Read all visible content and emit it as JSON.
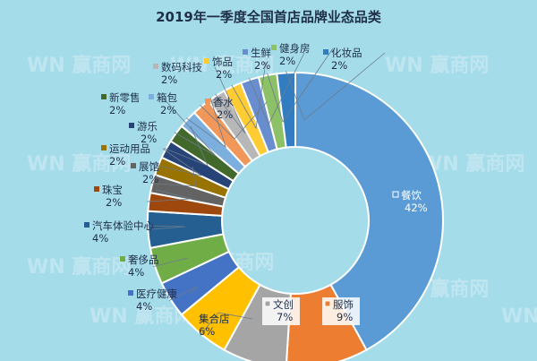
{
  "chart_data": {
    "type": "pie",
    "variant": "donut",
    "title": "2019年一季度全国首店品牌业态品类",
    "slices": [
      {
        "label": "餐饮",
        "value": 42,
        "display": "42%",
        "color": "#5b9bd5"
      },
      {
        "label": "服饰",
        "value": 9,
        "display": "9%",
        "color": "#ed7d31"
      },
      {
        "label": "文创",
        "value": 7,
        "display": "7%",
        "color": "#a5a5a5"
      },
      {
        "label": "集合店",
        "value": 6,
        "display": "6%",
        "color": "#ffc000"
      },
      {
        "label": "医疗健康",
        "value": 4,
        "display": "4%",
        "color": "#4472c4"
      },
      {
        "label": "奢侈品",
        "value": 4,
        "display": "4%",
        "color": "#70ad47"
      },
      {
        "label": "汽车体验中心",
        "value": 4,
        "display": "4%",
        "color": "#255e91"
      },
      {
        "label": "珠宝",
        "value": 2,
        "display": "2%",
        "color": "#9e480e"
      },
      {
        "label": "展馆",
        "value": 2,
        "display": "2%",
        "color": "#636363"
      },
      {
        "label": "运动用品",
        "value": 2,
        "display": "2%",
        "color": "#997300"
      },
      {
        "label": "游乐",
        "value": 2,
        "display": "2%",
        "color": "#264478"
      },
      {
        "label": "新零售",
        "value": 2,
        "display": "2%",
        "color": "#43682b"
      },
      {
        "label": "箱包",
        "value": 2,
        "display": "2%",
        "color": "#7cafdd"
      },
      {
        "label": "香水",
        "value": 2,
        "display": "2%",
        "color": "#f1975a"
      },
      {
        "label": "数码科技",
        "value": 2,
        "display": "2%",
        "color": "#b7b7b7"
      },
      {
        "label": "饰品",
        "value": 2,
        "display": "2%",
        "color": "#ffcd33"
      },
      {
        "label": "生鲜",
        "value": 2,
        "display": "2%",
        "color": "#698ed0"
      },
      {
        "label": "健身房",
        "value": 2,
        "display": "2%",
        "color": "#8cc168"
      },
      {
        "label": "化妆品",
        "value": 2,
        "display": "2%",
        "color": "#327dc2"
      }
    ]
  },
  "watermark": {
    "text": "赢商网",
    "logo": "WN"
  }
}
